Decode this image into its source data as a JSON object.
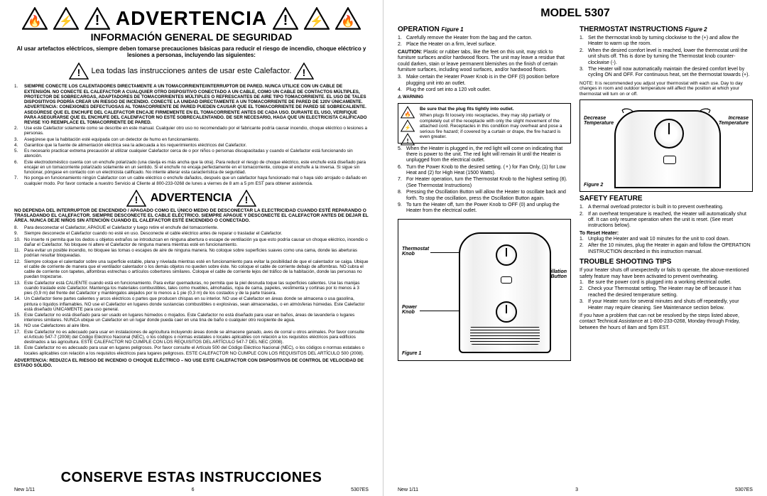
{
  "left": {
    "warn_word": "ADVERTENCIA",
    "section": "INFORMACIÓN GENERAL DE SEGURIDAD",
    "intro_bold": "Al usar artefactos eléctricos, siempre deben tomarse precauciones básicas para reducir el riesgo de incendio, choque eléctrico y lesiones a personas, incluyendo las siguientes:",
    "lead": "Lea todas las instrucciones antes de usar este Calefactor.",
    "items1": [
      "SIEMPRE CONECTE LOS CALENTADORES DIRECTAMENTE A UN TOMACORRIENTE/INTERRUPTOR DE PARED. NUNCA UTILICE CON UN CABLE DE EXTENSIÓN. NO CONECTE EL CALEFACTOR A CUALQUIER OTRO DISPOSITIVO CONECTADO A UN CABLE, COMO UN CABLE DE CONTACTOS MÚLTIPLES, PROTECTOR DE SOBRECARGAS, ADAPTADORES DE TOMACORRIENTES MÚLTIPLES O REFRESCANTES DE AIRE TIPO TOMACORRIENTE. EL USO DE TALES DISPOSITIVOS PODRÍA CREAR UN RIESGO DE INCENDIO. CONECTE LA UNIDAD DIRECTAMENTE A UN TOMACORRIENTE DE PARED DE 120V ÚNICAMENTE. ADVERTENCIA: CONEXIONES DEFECTUOSAS AL TOMACORRIENTE DE PARED PUEDEN CAUSAR QUE EL TOMACORRIENTE DE PARED SE SOBRECALIENTE. ASEGÚRESE QUE EL ENCHUFE DEL CALEFACTOR ENCAJE FIRMEMENTE EN EL TOMACORRIENTE ANTES DE CADA USO. DURANTE EL USO, VERIFIQUE PARA ASEGURARSE QUE EL ENCHUFE DEL CALENFACTOR NO ESTÉ SOBRECALENTANDO. DE SER NECESARIO, HAGA QUE UN ELECTRICISTA CALIFICADO REVISE Y/O REEMPLACE EL TOMACORRIENTE DE PARED.",
      "Use este Calefactor solamente como se describe en este manual. Cualquier otro uso no recomendado por el fabricante podría causar incendio, choque eléctrico o lesiones a personas.",
      "Asegúrese que la habitación esté equipada con un detector de humo en funcionamiento.",
      "Garantice que la fuente de alimentación eléctrica sea la adecuada a los requerimientos eléctricos del Calefactor.",
      "Es necesario practicar extrema precaución al utilizar cualquier Calefactor cerca de o por niños o personas discapacitadas y cuando el Calefactor está funcionando sin atención.",
      "Este electrodoméstico cuenta con un enchufe polarizado (una clavija es más ancha que la otra). Para reducir el riesgo de choque eléctrico, este enchufe está diseñado para encajar en un tomacorriente polarizado solamente en un sentido. Si el enchufe no encaja perfectamente en el tomacorriente, coloque el enchufe a la inversa. Si sigue sin funcionar, póngase en contacto con un electricista calificado. No intente alterar esta característica de seguridad.",
      "No ponga en funcionamiento ningún Calefactor con un cable eléctrico o enchufe dañados, después que un calefactor haya funcionado mal o haya sido arrojado o dañado en cualquier modo. Por favor contacte a nuestro Servicio al Cliente al 800-233-0268 de lunes a viernes de 8 am a 5 pm EST para obtener asistencia."
    ],
    "mid_bold": "NO DEPENDA DEL INTERRUPTOR DE ENCENDIDO / APAGADO COMO EL ÚNICO MEDIO DE DESCONECTAR LA ELECTRICIDAD CUANDO ESTÉ REPARANDO O TRASLADANDO EL CALEFACTOR. SIEMPRE DESCONECTE EL CABLE ELÉCTRICO. SIEMPRE APAGUE Y DESCONECTE EL CALEFACTOR ANTES DE DEJAR EL ÁREA. NUNCA DEJE NIÑOS SIN ATENCIÓN CUANDO EL CALEFACTOR ESTÉ ENCENDIDO O CONECTADO.",
    "items2": [
      "Para desconectar el Calefactor, APAGUE el Calefactor y luego retire el enchufe del tomacorriente.",
      "Siempre desconecte el Calefactor cuando no esté en uso. Desconecte el cable eléctrico antes de reparar o trasladar el Calefactor.",
      "No inserte ni permita que los dedos u objetos extraños se introduzcan en ninguna abertura o escape de ventilación ya que esto podría causar un choque eléctrico, incendio o dañar el Calefactor. No bloquee ni altere el Calefactor de ninguna manera mientras esté en funcionamiento.",
      "Para evitar un posible incendio, no bloquee las tomas o escapes de aire de ninguna manera. No coloque sobre superficies suaves como una cama, donde las aberturas podrían resultar bloqueadas.",
      "Siempre coloque el calentador sobre una superficie estable, plana y nivelada mientras esté en funcionamiento para evitar la posibilidad de que el calentador se caiga. Ubique el cable de corriente de manera que el ventilador calentador o los demás objetos no queden sobre éste. No coloque el cable de corriente debajo de alfombras. NO cubra el cable de corriente con tapetes, alfombras estrechas o artículos cobertores similares. Coloque el cable de corriente lejos del tráfico de la habitación, donde las personas no puedan tropezarse.",
      "Este Calefactor está CALIENTE cuando está en funcionamiento. Para evitar quemaduras, no permita que la piel desnuda toque las superficies calientes. Use las manijas cuando traslade este Calefactor. Mantenga los materiales combustibles, tales como muebles, almohadas, ropa de cama, papeles, vestimenta y cortinas por lo menos a 3 pies (0,9 m) del frente del Calefactor y manténgalos alejados por lo menos a 1 pie (0,3 m) de los costados y de la parte trasera.",
      "Un Calefactor tiene partes calientes y arcos eléctricos o partes que producen chispas en su interior. NO use el Calefactor en áreas donde se almacena o usa gasolina, pintura o líquidos inflamables. NO use el Calefactor en lugares donde sustancias combustibles o explosivas, sean almacenadas, o en atmósferas húmedas. Este Calefactor está diseñado ÚNICAMENTE para uso general.",
      "Este Calefactor no está diseñado para ser usado en lugares húmedos o mojados. Este Calefactor no está diseñado para usar en baños, áreas de lavandería o lugares interiores similares. NUNCA ubique un Calefactor en un lugar donde pueda caer en una tina de baño o cualquier otro recipiente de agua.",
      "NO use Calefactores al aire libre.",
      "Este Calefactor no es adecuado para usar en instalaciones de agricultura incluyendo áreas donde se almacene ganado, aves de corral u otros animales. Por favor consulte el Artículo 547-7 (2008) del Código Eléctrico Nacional (NEC), o los códigos o normas estatales o locales aplicables con relación a los requisitos eléctricos para edificios destinados a las agricultura. ESTE CALEFACTOR NO CUMPLE CON LOS REQUISITOS DEL ARTÍCULO 547-7 DEL NEC (2008).",
      "Este Calefactor no es adecuado para usar en lugares peligrosos. Por favor consulte el Artículo 500 del Código Eléctrico Nacional (NEC), o los códigos o normas estatales o locales aplicables con relación a los requisitos eléctricos para lugares peligrosos. ESTE CALEFACTOR NO CUMPLE CON LOS REQUISITOS DEL ARTÍCULO 500 (2008)."
    ],
    "footer_warn": "ADVERTENCIA: REDUZCA EL RIESGO DE INCENDIO O CHOQUE ELÉCTRICO – NO USE ESTE CALEFACTOR CON DISPOSITIVOS DE CONTROL DE VELOCIDAD DE ESTADO SÓLIDO.",
    "big_footer": "CONSERVE ESTAS INSTRUCCIONES",
    "meta_left": "New 1/11",
    "page_no": "6",
    "meta_right": "5307ES"
  },
  "right": {
    "model": "MODEL 5307",
    "op_h": "OPERATION",
    "op_fig": "Figure 1",
    "op_items_a": [
      "Carefully remove the Heater from the bag and the carton.",
      "Place the Heater on a firm, level surface."
    ],
    "caution": "CAUTION:",
    "caution_text": " Plastic or rubber tabs, like the feet on this unit, may stick to furniture surfaces and/or hardwood floors. The unit may leave a residue that could darken, stain or leave permanent blemishes on the finish of certain furniture surfaces, including wood surfaces, and/or hardwood floors.",
    "op_items_b": [
      "Make certain the Heater Power Knob is in the OFF (0) position before plugging unit into an outlet.",
      "Plug the cord set into a 120 volt outlet."
    ],
    "warn_sym_label": "⚠ WARNING",
    "warn_box_title": "Be sure that the plug fits tightly into outlet.",
    "warn_box_text": "When plugs fit loosely into receptacles, they may slip partially or completely out of the receptacle with only the slight movement of the attached cord. Receptacles in this condition may overheat and pose a serious fire hazard; if covered by a curtain or drape, the fire hazard is even greater.",
    "op_items_c": [
      "When the Heater is plugged in, the red light will come on indicating that there is power to the unit. The red light will remain lit until the Heater is unplugged from the electrical outlet.",
      "Turn the Power Knob to the desired setting. (⚬) for Fan Only, (1) for Low Heat and (2) for High Heat (1500 Watts).",
      "For Heater operation, turn the Thermostat Knob to the highest setting (8). (See Thermostat Instructions)",
      "Pressing the Oscillation Button will allow the Heater to oscillate back and forth. To stop the oscillation, press the Oscillation Button again.",
      "To turn the Heater off, turn the Power Knob to OFF (0) and unplug the Heater from the electrical outlet."
    ],
    "fig1_labels": {
      "thermo": "Thermostat\nKnob",
      "osc": "Oscillation\nButton",
      "power": "Power\nKnob",
      "cap": "Figure 1"
    },
    "thermo_h": "THERMOSTAT INSTRUCTIONS",
    "thermo_fig": "Figure 2",
    "thermo_items": [
      "Set the thermostat knob by turning clockwise to the (+) and allow the Heater to warm up the room.",
      "When the desired comfort level is reached, lower the thermostat until the unit shuts off. This is done by turning the Thermostat knob counter-clockwise (-).",
      "The Heater will now automatically maintain the desired comfort level by cycling ON and OFF. For continuous heat, set the thermostat towards (+)."
    ],
    "thermo_note": "NOTE: It is recommended you adjust your thermostat with each use. Day to day changes in room and outdoor temperature will affect the position at which your thermostat will turn on or off.",
    "fig2_labels": {
      "dec": "Decrease\nTemperature",
      "inc": "Increase\nTemperature",
      "cap": "Figure 2"
    },
    "safety_h": "SAFETY FEATURE",
    "safety_items": [
      "A thermal overload protector is built in to prevent overheating.",
      "If an overheat temperature is reached, the Heater will automatically shut off. It can only resume operation when the unit is reset. (See reset instructions below)."
    ],
    "reset_h": "To Reset Heater:",
    "reset_items": [
      "Unplug the Heater and wait 10 minutes for the unit to cool down.",
      "After the 10 minutes, plug the Heater in again and follow the OPERATION INSTRUCTION described in this instruction manual."
    ],
    "tst_h": "TROUBLE SHOOTING TIPS",
    "tst_lead": "If your heater shuts off unexpectedly or fails to operate, the above-mentioned safety feature may have been activated to prevent overheating.",
    "tst_items": [
      "Be sure the power cord is plugged into a working electrical outlet.",
      "Check your Thermostat setting. The Heater may be off because it has reached the desired temperature setting.",
      "If your Heater runs for several minutes and shuts off repeatedly, your Heater may require cleaning. See Maintenance section below."
    ],
    "tst_tail": "If you have a problem that can not be resolved by the steps listed above, contact Technical Assistance at 1-800-233-0268, Monday through Friday, between the hours of 8am and 5pm EST.",
    "meta_left": "New 1/11",
    "page_no": "3",
    "meta_right": "5307ES"
  }
}
